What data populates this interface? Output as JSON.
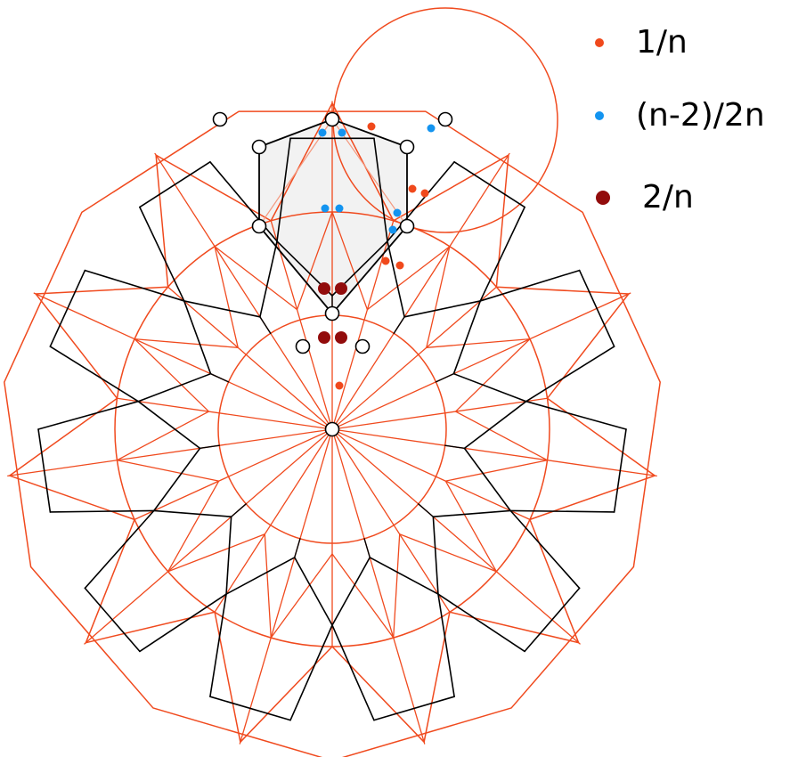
{
  "colors": {
    "construction": "#f04a1e",
    "construction_light": "#f49a80",
    "pattern": "#000000",
    "fill": "#f2f2f2",
    "node_fill": "#ffffff",
    "dot_orange": "#f0491c",
    "dot_blue": "#1394f0",
    "dot_darkred": "#920c0c"
  },
  "legend": [
    {
      "label": "1/n",
      "color_key": "dot_orange",
      "icon": "orange-dot-icon"
    },
    {
      "label": "(n-2)/2n",
      "color_key": "dot_blue",
      "icon": "blue-dot-icon"
    },
    {
      "label": "2/n",
      "color_key": "dot_darkred",
      "icon": "darkred-dot-icon"
    }
  ],
  "diagram": {
    "symmetry": 11
  }
}
